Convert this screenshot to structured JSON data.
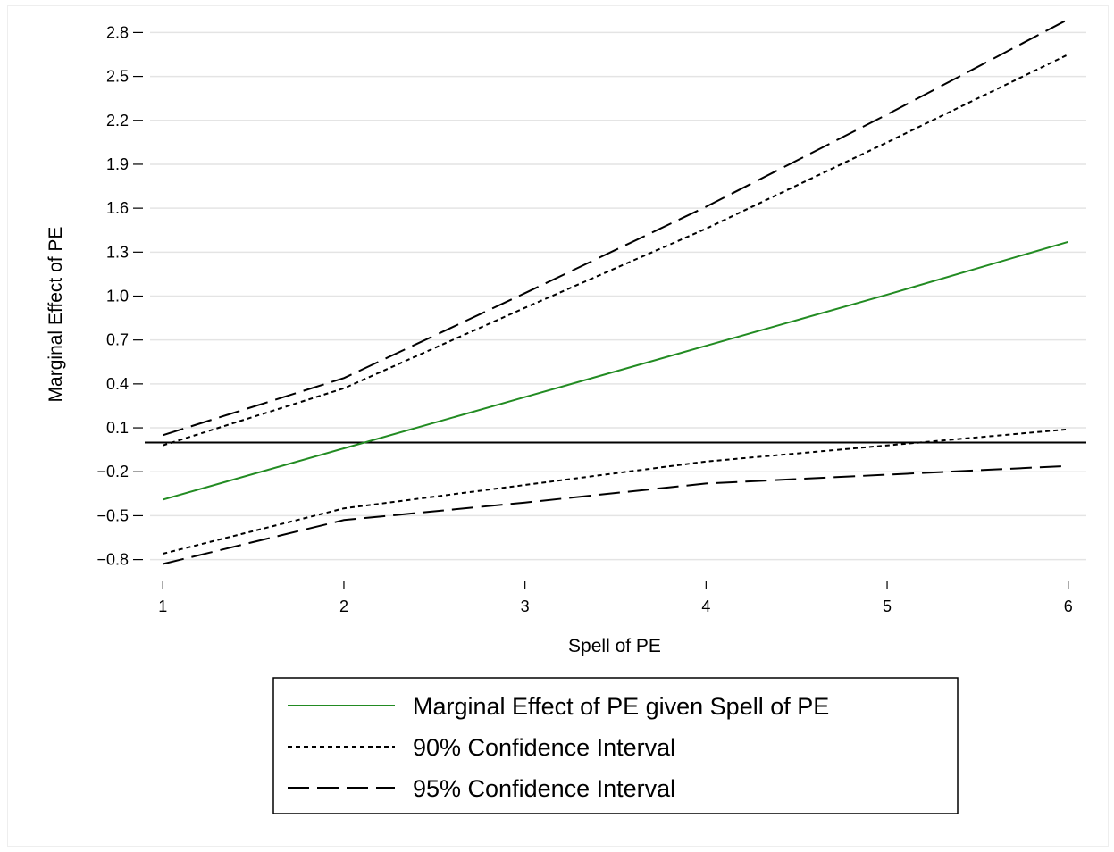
{
  "chart_data": {
    "type": "line",
    "xlabel": "Spell of PE",
    "ylabel": "Marginal Effect of PE",
    "xlim": [
      0.9,
      6.1
    ],
    "ylim": [
      -0.9,
      2.9
    ],
    "xticks": [
      1,
      2,
      3,
      4,
      5,
      6
    ],
    "xtick_labels": [
      "1",
      "2",
      "3",
      "4",
      "5",
      "6"
    ],
    "yticks": [
      -0.8,
      -0.5,
      -0.2,
      0.1,
      0.4,
      0.7,
      1.0,
      1.3,
      1.6,
      1.9,
      2.2,
      2.5,
      2.8
    ],
    "ytick_labels": [
      "−0.8",
      "−0.5",
      "−0.2",
      "0.1",
      "0.4",
      "0.7",
      "1.0",
      "1.3",
      "1.6",
      "1.9",
      "2.2",
      "2.5",
      "2.8"
    ],
    "grid": true,
    "reference_line_y": 0,
    "legend_position": "bottom",
    "series": [
      {
        "name": "Marginal Effect of PE given Spell of PE",
        "style": "solid",
        "color": "#228b22",
        "x": [
          1,
          2,
          3,
          4,
          5,
          6
        ],
        "y": [
          -0.39,
          -0.04,
          0.31,
          0.66,
          1.01,
          1.37
        ]
      },
      {
        "name": "90% Confidence Interval",
        "style": "dotted",
        "color": "#000000",
        "x": [
          1,
          2,
          3,
          4,
          5,
          6
        ],
        "y": [
          -0.02,
          0.37,
          0.92,
          1.46,
          2.05,
          2.65
        ]
      },
      {
        "name": "",
        "style": "dotted",
        "color": "#000000",
        "x": [
          1,
          2,
          3,
          4,
          5,
          6
        ],
        "y": [
          -0.76,
          -0.45,
          -0.29,
          -0.13,
          -0.02,
          0.09
        ]
      },
      {
        "name": "95% Confidence Interval",
        "style": "dashed",
        "color": "#000000",
        "x": [
          1,
          2,
          3,
          4,
          5,
          6
        ],
        "y": [
          0.05,
          0.44,
          1.02,
          1.61,
          2.24,
          2.89
        ]
      },
      {
        "name": "",
        "style": "dashed",
        "color": "#000000",
        "x": [
          1,
          2,
          3,
          4,
          5,
          6
        ],
        "y": [
          -0.83,
          -0.53,
          -0.41,
          -0.28,
          -0.22,
          -0.16
        ]
      }
    ],
    "legend": [
      {
        "label": "Marginal Effect of PE given Spell of PE",
        "style": "solid",
        "color": "#228b22"
      },
      {
        "label": "90% Confidence Interval",
        "style": "dotted",
        "color": "#000000"
      },
      {
        "label": "95% Confidence Interval",
        "style": "dashed",
        "color": "#000000"
      }
    ]
  }
}
